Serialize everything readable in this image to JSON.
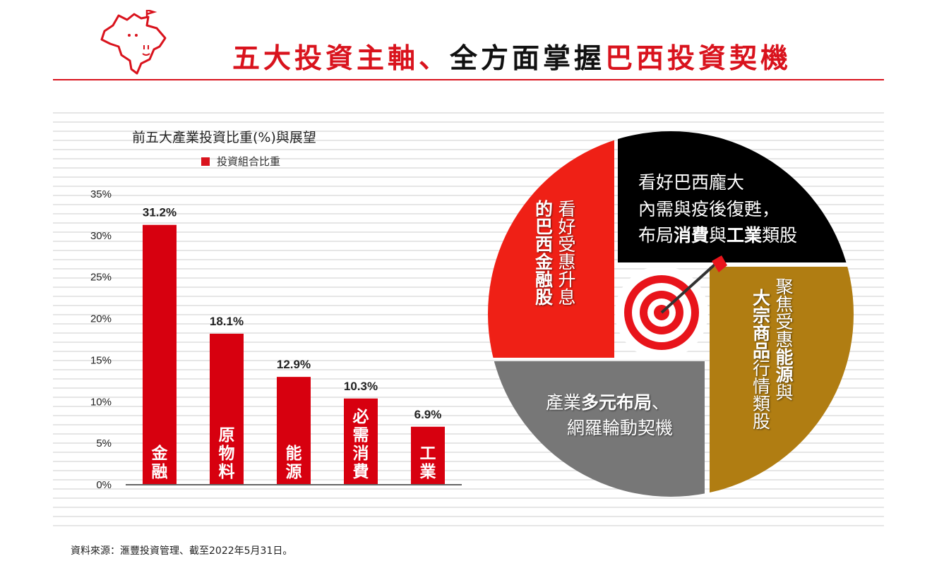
{
  "header": {
    "title_red1": "五大投資主軸、",
    "title_black": "全方面掌握",
    "title_red2": "巴西投資契機"
  },
  "colors": {
    "accent": "#d9131d",
    "bar": "#d7000f",
    "black": "#000000",
    "gold": "#b07d12",
    "gray": "#777777",
    "red_quadrant": "#ef2016"
  },
  "chart_data": {
    "type": "bar",
    "title": "前五大產業投資比重(%)與展望",
    "legend": [
      "投資組合比重"
    ],
    "categories": [
      "金融",
      "原物料",
      "能源",
      "必需消費",
      "工業"
    ],
    "series": [
      {
        "name": "投資組合比重",
        "values": [
          31.2,
          18.1,
          12.9,
          10.3,
          6.9
        ]
      }
    ],
    "data_labels": [
      "31.2%",
      "18.1%",
      "12.9%",
      "10.3%",
      "6.9%"
    ],
    "yticks": [
      "0%",
      "5%",
      "10%",
      "15%",
      "20%",
      "25%",
      "30%",
      "35%"
    ],
    "ylim": [
      0,
      35
    ],
    "grid": false
  },
  "pie": {
    "red": {
      "line1": "看好受惠升息",
      "line2": "的巴西金融股"
    },
    "black": {
      "line1": "看好巴西龐大",
      "line2": "內需與疫後復甦，",
      "line3a": "布局",
      "line3b": "消費",
      "line3c": "與",
      "line3d": "工業",
      "line3e": "類股"
    },
    "gold": {
      "line1a": "聚焦受惠",
      "line1b": "能源",
      "line1c": "與",
      "line2a": "大宗商品",
      "line2b": "行情類股"
    },
    "gray": {
      "line1a": "產業",
      "line1b": "多元布局",
      "line1c": "、",
      "line2": "網羅輪動契機"
    }
  },
  "footer": {
    "source": "資料來源：滙豐投資管理、截至2022年5月31日。"
  }
}
